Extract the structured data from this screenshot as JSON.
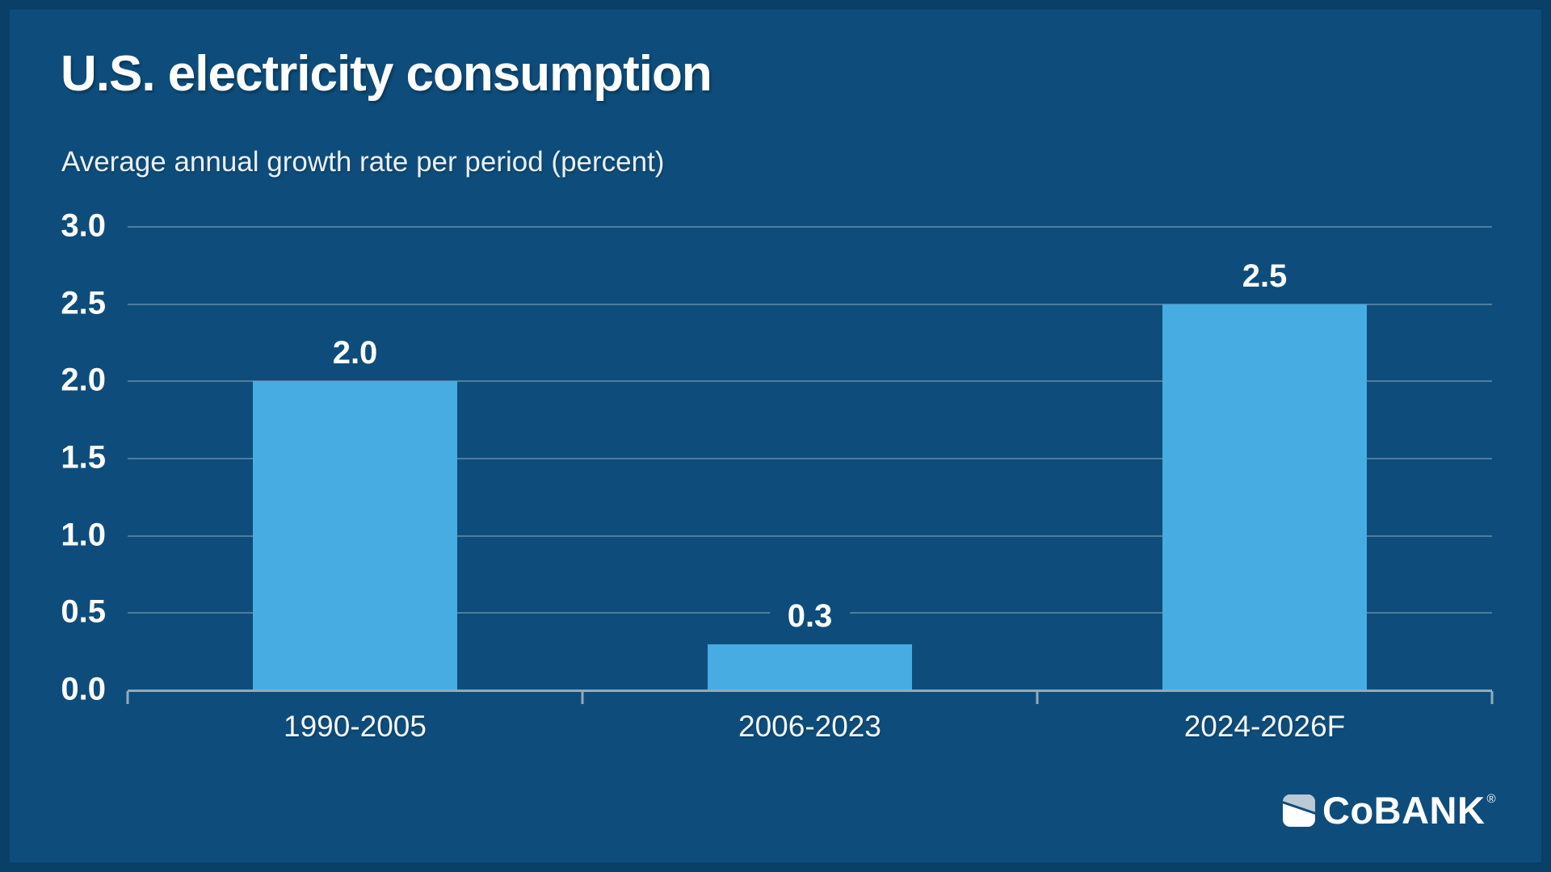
{
  "page": {
    "title": "U.S. electricity consumption",
    "subtitle": "Average annual growth rate per period (percent)",
    "background_color": "#0e4d7b",
    "text_color": "#ffffff"
  },
  "chart_data": {
    "type": "bar",
    "title": "U.S. electricity consumption",
    "subtitle": "Average annual growth rate per period (percent)",
    "categories": [
      "1990-2005",
      "2006-2023",
      "2024-2026F"
    ],
    "values": [
      2.0,
      0.3,
      2.5
    ],
    "value_labels": [
      "2.0",
      "0.3",
      "2.5"
    ],
    "ylim": [
      0,
      3.0
    ],
    "ytick_step": 0.5,
    "yticks": [
      {
        "value": 0.0,
        "label": "0.0"
      },
      {
        "value": 0.5,
        "label": "0.5"
      },
      {
        "value": 1.0,
        "label": "1.0"
      },
      {
        "value": 1.5,
        "label": "1.5"
      },
      {
        "value": 2.0,
        "label": "2.0"
      },
      {
        "value": 2.5,
        "label": "2.5"
      },
      {
        "value": 3.0,
        "label": "3.0"
      }
    ],
    "xlabel": "",
    "ylabel": "Average annual growth rate per period (percent)",
    "grid": "horizontal-only",
    "legend": "none",
    "colors": {
      "bar": "#47ace2",
      "gridline": "rgba(255,255,255,0.27)",
      "axis": "#93aabc"
    }
  },
  "branding": {
    "logo_name": "CoBANK",
    "logo_parts": {
      "c": "C",
      "o": "o",
      "bank": "BANK"
    },
    "registered_mark": "®",
    "mark_colors": {
      "light": "#b9c9d6",
      "white": "#ffffff"
    }
  }
}
